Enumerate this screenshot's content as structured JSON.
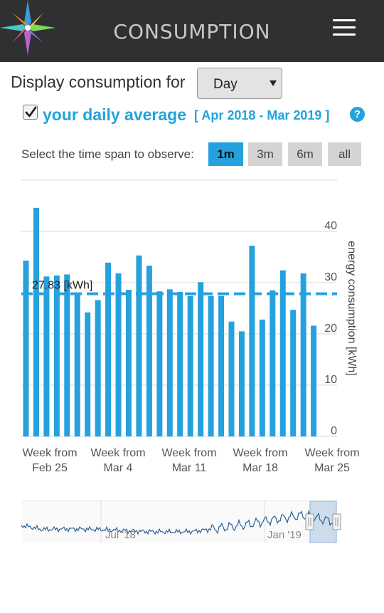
{
  "header": {
    "title": "CONSUMPTION",
    "logo_icon": "compass-star-icon",
    "menu_icon": "hamburger-menu-icon",
    "background": "#2f3031"
  },
  "display": {
    "label": "Display consumption for",
    "selected": "Day"
  },
  "average": {
    "checked": true,
    "label": "your daily average",
    "range": "[ Apr 2018 - Mar 2019 ]",
    "help_icon": "question-circle-icon",
    "color": "#23a3dc"
  },
  "timespan": {
    "label": "Select the time span to observe:",
    "options": [
      "1m",
      "3m",
      "6m",
      "all"
    ],
    "active": "1m"
  },
  "chart_data": {
    "type": "bar",
    "values": [
      34.3,
      44.6,
      31.2,
      31.4,
      31.6,
      28.0,
      24.2,
      26.6,
      33.9,
      31.8,
      28.6,
      35.3,
      33.3,
      28.3,
      28.7,
      28.2,
      27.4,
      30.1,
      27.4,
      27.4,
      22.4,
      20.5,
      37.2,
      22.8,
      28.5,
      32.4,
      24.7,
      31.8,
      21.6
    ],
    "average_line": 27.83,
    "average_label": "27.83 [kWh]",
    "ylabel": "energy consumption [kWh]",
    "ylim": [
      0,
      50
    ],
    "yticks": [
      0,
      10,
      20,
      30,
      40
    ],
    "xtick_labels": [
      {
        "line1": "Week from",
        "line2": "Feb 25"
      },
      {
        "line1": "Week from",
        "line2": "Mar 4"
      },
      {
        "line1": "Week from",
        "line2": "Mar 11"
      },
      {
        "line1": "Week from",
        "line2": "Mar 18"
      },
      {
        "line1": "Week from",
        "line2": "Mar 25"
      }
    ],
    "bar_color": "#25a1dd",
    "grid": true
  },
  "navigator": {
    "labels": [
      "Jul '18",
      "Jan '19"
    ]
  }
}
